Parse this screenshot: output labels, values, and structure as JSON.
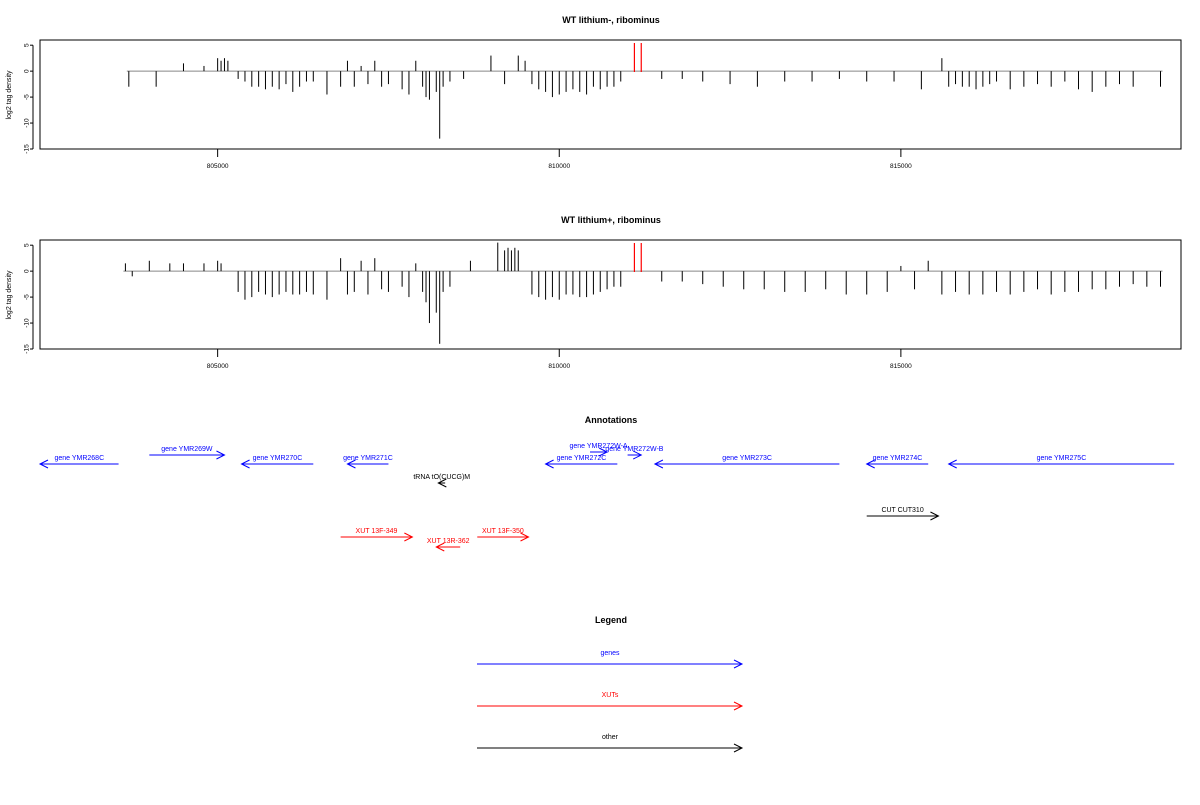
{
  "chart_data": [
    {
      "type": "bar",
      "title": "WT lithium-, ribominus",
      "ylabel": "log2 tag density",
      "xlim": [
        802400,
        819100
      ],
      "ylim": [
        -15,
        6
      ],
      "x_ticks": [
        805000,
        810000,
        815000
      ],
      "y_ticks": [
        5,
        0,
        -5,
        -10,
        -15
      ],
      "marker_lines_x": [
        811100,
        811200
      ],
      "series": [
        {
          "x": [
            803700,
            804100,
            804500,
            804800,
            805000,
            805050,
            805100,
            805150,
            805300,
            805400,
            805500,
            805600,
            805700,
            805800,
            805900,
            806000,
            806100,
            806200,
            806300,
            806400,
            806600,
            806800,
            806900,
            807000,
            807100,
            807200,
            807300,
            807400,
            807500,
            807700,
            807800,
            807900,
            808000,
            808050,
            808100,
            808200,
            808250,
            808300,
            808400,
            808600,
            809000,
            809200,
            809400,
            809500,
            809600,
            809700,
            809800,
            809900,
            810000,
            810100,
            810200,
            810300,
            810400,
            810500,
            810600,
            810700,
            810800,
            810900,
            811500,
            811800,
            812100,
            812500,
            812900,
            813300,
            813700,
            814100,
            814500,
            814900,
            815300,
            815600,
            815700,
            815800,
            815900,
            816000,
            816100,
            816200,
            816300,
            816400,
            816600,
            816800,
            817000,
            817200,
            817400,
            817600,
            817800,
            818000,
            818200,
            818400,
            818800
          ],
          "y": [
            -3,
            -3,
            1.5,
            1,
            2.5,
            2,
            2.5,
            2,
            -1.5,
            -2,
            -3,
            -3,
            -3.5,
            -3,
            -3.5,
            -2.5,
            -4,
            -3,
            -2,
            -2,
            -4.5,
            -3,
            2,
            -3,
            1,
            -2.5,
            2,
            -3,
            -2.5,
            -3.5,
            -4.5,
            2,
            -3,
            -5,
            -5.5,
            -4,
            -13,
            -3,
            -2,
            -1.5,
            3,
            -2.5,
            3,
            2,
            -2.5,
            -3.5,
            -4,
            -5,
            -4.5,
            -4,
            -3.5,
            -4,
            -4.5,
            -3,
            -3.5,
            -3,
            -3,
            -2,
            -1.5,
            -1.5,
            -2,
            -2.5,
            -3,
            -2,
            -2,
            -1.5,
            -2,
            -2,
            -3.5,
            2.5,
            -3,
            -2.5,
            -3,
            -3,
            -3.5,
            -3,
            -2.5,
            -2,
            -3.5,
            -3,
            -2.5,
            -3,
            -2,
            -3.5,
            -4,
            -3,
            -2.5,
            -3,
            -3
          ]
        }
      ]
    },
    {
      "type": "bar",
      "title": "WT lithium+, ribominus",
      "ylabel": "log2 tag density",
      "xlim": [
        802400,
        819100
      ],
      "ylim": [
        -15,
        6
      ],
      "x_ticks": [
        805000,
        810000,
        815000
      ],
      "y_ticks": [
        5,
        0,
        -5,
        -10,
        -15
      ],
      "marker_lines_x": [
        811100,
        811200
      ],
      "series": [
        {
          "x": [
            803650,
            803750,
            804000,
            804300,
            804500,
            804800,
            805000,
            805050,
            805300,
            805400,
            805500,
            805600,
            805700,
            805800,
            805900,
            806000,
            806100,
            806200,
            806300,
            806400,
            806600,
            806800,
            806900,
            807000,
            807100,
            807200,
            807300,
            807400,
            807500,
            807700,
            807800,
            807900,
            808000,
            808050,
            808100,
            808200,
            808250,
            808300,
            808400,
            808700,
            809100,
            809200,
            809250,
            809300,
            809350,
            809400,
            809600,
            809700,
            809800,
            809900,
            810000,
            810100,
            810200,
            810300,
            810400,
            810500,
            810600,
            810700,
            810800,
            810900,
            811500,
            811800,
            812100,
            812400,
            812700,
            813000,
            813300,
            813600,
            813900,
            814200,
            814500,
            814800,
            815000,
            815200,
            815400,
            815600,
            815800,
            816000,
            816200,
            816400,
            816600,
            816800,
            817000,
            817200,
            817400,
            817600,
            817800,
            818000,
            818200,
            818400,
            818600,
            818800
          ],
          "y": [
            1.5,
            -1,
            2,
            1.5,
            1.5,
            1.5,
            2,
            1.5,
            -4,
            -5.5,
            -5,
            -4,
            -4.5,
            -5,
            -4.5,
            -4,
            -4.5,
            -4.5,
            -4,
            -4.5,
            -5.5,
            2.5,
            -4.5,
            -4,
            2,
            -4.5,
            2.5,
            -3.5,
            -4,
            -3,
            -5,
            1.5,
            -4,
            -6,
            -10,
            -8,
            -14,
            -4,
            -3,
            2,
            5.5,
            4,
            4.5,
            4,
            4.5,
            4,
            -4.5,
            -5,
            -5.5,
            -5,
            -5.5,
            -4.5,
            -4.5,
            -5,
            -5,
            -4.5,
            -4,
            -3.5,
            -3,
            -3,
            -2,
            -2,
            -2.5,
            -3,
            -3.5,
            -3.5,
            -4,
            -4,
            -3.5,
            -4.5,
            -4.5,
            -4,
            1,
            -3.5,
            2,
            -4.5,
            -4,
            -4.5,
            -4.5,
            -4,
            -4.5,
            -4,
            -3.5,
            -4.5,
            -4,
            -4,
            -3.5,
            -3.5,
            -3,
            -2.5,
            -3,
            -3
          ]
        }
      ]
    }
  ],
  "annotations": {
    "title": "Annotations",
    "features": [
      {
        "label": "gene YMR268C",
        "start": 802400,
        "end": 803550,
        "dir": "left",
        "row": 2,
        "color": "#0000ff"
      },
      {
        "label": "gene YMR269W",
        "start": 804000,
        "end": 805100,
        "dir": "right",
        "row": 1,
        "color": "#0000ff"
      },
      {
        "label": "gene YMR270C",
        "start": 805350,
        "end": 806400,
        "dir": "left",
        "row": 2,
        "color": "#0000ff"
      },
      {
        "label": "gene YMR271C",
        "start": 806900,
        "end": 807500,
        "dir": "left",
        "row": 2,
        "color": "#0000ff"
      },
      {
        "label": "gene YMR272C",
        "start": 809800,
        "end": 810850,
        "dir": "left",
        "row": 2,
        "color": "#0000ff"
      },
      {
        "label": "gene YMR272W-A",
        "start": 810450,
        "end": 810700,
        "dir": "right",
        "row": 0,
        "color": "#0000ff"
      },
      {
        "label": "gene YMR272W-B",
        "start": 811000,
        "end": 811200,
        "dir": "right",
        "row": 1,
        "color": "#0000ff"
      },
      {
        "label": "gene YMR273C",
        "start": 811400,
        "end": 814100,
        "dir": "left",
        "row": 3,
        "color": "#0000ff"
      },
      {
        "label": "gene YMR274C",
        "start": 814500,
        "end": 815400,
        "dir": "left",
        "row": 2,
        "color": "#0000ff"
      },
      {
        "label": "gene YMR275C",
        "start": 815700,
        "end": 819000,
        "dir": "left",
        "row": 2,
        "color": "#0000ff"
      },
      {
        "label": "tRNA tO(CUCG)M",
        "start": 808230,
        "end": 808330,
        "dir": "left",
        "row": 4,
        "color": "#000000"
      },
      {
        "label": "CUT CUT310",
        "start": 814500,
        "end": 815550,
        "dir": "right",
        "row": 5,
        "color": "#000000"
      },
      {
        "label": "XUT 13F-349",
        "start": 806800,
        "end": 807850,
        "dir": "right",
        "row": 6,
        "color": "#ff0000"
      },
      {
        "label": "XUT 13R-362",
        "start": 808200,
        "end": 808550,
        "dir": "left",
        "row": 7,
        "color": "#ff0000"
      },
      {
        "label": "XUT 13F-350",
        "start": 808800,
        "end": 809550,
        "dir": "right",
        "row": 6,
        "color": "#ff0000"
      }
    ]
  },
  "legend": {
    "title": "Legend",
    "items": [
      {
        "label": "genes",
        "color": "#0000ff"
      },
      {
        "label": "XUTs",
        "color": "#ff0000"
      },
      {
        "label": "other",
        "color": "#000000"
      }
    ]
  }
}
